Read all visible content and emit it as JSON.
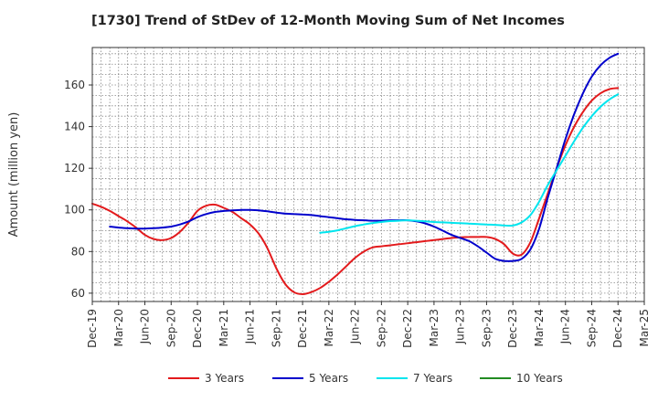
{
  "chart_data": {
    "type": "line",
    "title": "[1730]  Trend of StDev of 12-Month Moving Sum of Net Incomes",
    "ylabel": "Amount (million yen)",
    "xlabel": "",
    "ylim": [
      56,
      178
    ],
    "yticks": [
      60,
      80,
      100,
      120,
      140,
      160
    ],
    "xlim": [
      "Dec-19",
      "Mar-25"
    ],
    "x_tick_labels": [
      "Dec-19",
      "Mar-20",
      "Jun-20",
      "Sep-20",
      "Dec-20",
      "Mar-21",
      "Jun-21",
      "Sep-21",
      "Dec-21",
      "Mar-22",
      "Jun-22",
      "Sep-22",
      "Dec-22",
      "Mar-23",
      "Jun-23",
      "Sep-23",
      "Dec-23",
      "Mar-24",
      "Jun-24",
      "Sep-24",
      "Dec-24",
      "Mar-25"
    ],
    "grid": true,
    "legend_position": "bottom",
    "series": [
      {
        "name": "3 Years",
        "color": "#e31a1c",
        "points": [
          [
            "Dec-19",
            103.0
          ],
          [
            "Jan-20",
            101.5
          ],
          [
            "Feb-20",
            99.5
          ],
          [
            "Mar-20",
            97.0
          ],
          [
            "Apr-20",
            94.5
          ],
          [
            "May-20",
            91.5
          ],
          [
            "Jun-20",
            88.0
          ],
          [
            "Jul-20",
            86.0
          ],
          [
            "Aug-20",
            85.5
          ],
          [
            "Sep-20",
            86.5
          ],
          [
            "Oct-20",
            89.5
          ],
          [
            "Nov-20",
            94.0
          ],
          [
            "Dec-20",
            99.5
          ],
          [
            "Jan-21",
            102.0
          ],
          [
            "Feb-21",
            102.5
          ],
          [
            "Mar-21",
            101.0
          ],
          [
            "Apr-21",
            99.0
          ],
          [
            "May-21",
            96.0
          ],
          [
            "Jun-21",
            93.0
          ],
          [
            "Jul-21",
            88.5
          ],
          [
            "Aug-21",
            81.5
          ],
          [
            "Sep-21",
            72.0
          ],
          [
            "Oct-21",
            64.5
          ],
          [
            "Nov-21",
            60.5
          ],
          [
            "Dec-21",
            59.5
          ],
          [
            "Jan-22",
            60.5
          ],
          [
            "Feb-22",
            62.5
          ],
          [
            "Mar-22",
            65.5
          ],
          [
            "Apr-22",
            69.0
          ],
          [
            "May-22",
            73.0
          ],
          [
            "Jun-22",
            77.0
          ],
          [
            "Jul-22",
            80.0
          ],
          [
            "Aug-22",
            82.0
          ],
          [
            "Sep-22",
            82.5
          ],
          [
            "Oct-22",
            83.0
          ],
          [
            "Nov-22",
            83.5
          ],
          [
            "Dec-22",
            84.0
          ],
          [
            "Jan-23",
            84.5
          ],
          [
            "Feb-23",
            85.0
          ],
          [
            "Mar-23",
            85.5
          ],
          [
            "Apr-23",
            86.0
          ],
          [
            "May-23",
            86.5
          ],
          [
            "Jun-23",
            86.8
          ],
          [
            "Jul-23",
            87.0
          ],
          [
            "Aug-23",
            87.0
          ],
          [
            "Sep-23",
            87.0
          ],
          [
            "Oct-23",
            86.0
          ],
          [
            "Nov-23",
            83.5
          ],
          [
            "Dec-23",
            79.0
          ],
          [
            "Jan-24",
            78.5
          ],
          [
            "Feb-24",
            84.5
          ],
          [
            "Mar-24",
            96.0
          ],
          [
            "Apr-24",
            108.0
          ],
          [
            "May-24",
            120.0
          ],
          [
            "Jun-24",
            131.0
          ],
          [
            "Jul-24",
            140.0
          ],
          [
            "Aug-24",
            147.0
          ],
          [
            "Sep-24",
            152.5
          ],
          [
            "Oct-24",
            156.0
          ],
          [
            "Nov-24",
            158.0
          ],
          [
            "Dec-24",
            158.5
          ]
        ]
      },
      {
        "name": "5 Years",
        "color": "#0000cc",
        "points": [
          [
            "Feb-20",
            92.0
          ],
          [
            "Mar-20",
            91.5
          ],
          [
            "Apr-20",
            91.2
          ],
          [
            "May-20",
            91.0
          ],
          [
            "Jun-20",
            91.0
          ],
          [
            "Jul-20",
            91.2
          ],
          [
            "Aug-20",
            91.5
          ],
          [
            "Sep-20",
            92.0
          ],
          [
            "Oct-20",
            93.0
          ],
          [
            "Nov-20",
            94.5
          ],
          [
            "Dec-20",
            96.5
          ],
          [
            "Jan-21",
            98.0
          ],
          [
            "Feb-21",
            99.0
          ],
          [
            "Mar-21",
            99.5
          ],
          [
            "Apr-21",
            99.8
          ],
          [
            "May-21",
            100.0
          ],
          [
            "Jun-21",
            100.0
          ],
          [
            "Jul-21",
            99.8
          ],
          [
            "Aug-21",
            99.3
          ],
          [
            "Sep-21",
            98.7
          ],
          [
            "Oct-21",
            98.2
          ],
          [
            "Nov-21",
            98.0
          ],
          [
            "Dec-21",
            97.8
          ],
          [
            "Jan-22",
            97.5
          ],
          [
            "Feb-22",
            97.0
          ],
          [
            "Mar-22",
            96.5
          ],
          [
            "Apr-22",
            96.0
          ],
          [
            "May-22",
            95.5
          ],
          [
            "Jun-22",
            95.2
          ],
          [
            "Jul-22",
            95.0
          ],
          [
            "Aug-22",
            94.8
          ],
          [
            "Sep-22",
            94.8
          ],
          [
            "Oct-22",
            95.0
          ],
          [
            "Nov-22",
            95.0
          ],
          [
            "Dec-22",
            95.0
          ],
          [
            "Jan-23",
            94.5
          ],
          [
            "Feb-23",
            93.5
          ],
          [
            "Mar-23",
            92.0
          ],
          [
            "Apr-23",
            90.0
          ],
          [
            "May-23",
            88.0
          ],
          [
            "Jun-23",
            86.5
          ],
          [
            "Jul-23",
            85.0
          ],
          [
            "Aug-23",
            82.5
          ],
          [
            "Sep-23",
            79.5
          ],
          [
            "Oct-23",
            76.5
          ],
          [
            "Nov-23",
            75.5
          ],
          [
            "Dec-23",
            75.5
          ],
          [
            "Jan-24",
            76.5
          ],
          [
            "Feb-24",
            81.0
          ],
          [
            "Mar-24",
            91.0
          ],
          [
            "Apr-24",
            106.0
          ],
          [
            "May-24",
            120.0
          ],
          [
            "Jun-24",
            134.0
          ],
          [
            "Jul-24",
            146.0
          ],
          [
            "Aug-24",
            156.0
          ],
          [
            "Sep-24",
            164.0
          ],
          [
            "Oct-24",
            169.5
          ],
          [
            "Nov-24",
            173.0
          ],
          [
            "Dec-24",
            175.0
          ]
        ]
      },
      {
        "name": "7 Years",
        "color": "#00e5ee",
        "points": [
          [
            "Feb-22",
            89.0
          ],
          [
            "Mar-22",
            89.5
          ],
          [
            "Apr-22",
            90.2
          ],
          [
            "May-22",
            91.2
          ],
          [
            "Jun-22",
            92.2
          ],
          [
            "Jul-22",
            93.0
          ],
          [
            "Aug-22",
            93.7
          ],
          [
            "Sep-22",
            94.2
          ],
          [
            "Oct-22",
            94.6
          ],
          [
            "Nov-22",
            94.8
          ],
          [
            "Dec-22",
            95.0
          ],
          [
            "Jan-23",
            94.8
          ],
          [
            "Feb-23",
            94.5
          ],
          [
            "Mar-23",
            94.2
          ],
          [
            "Apr-23",
            94.0
          ],
          [
            "May-23",
            93.8
          ],
          [
            "Jun-23",
            93.6
          ],
          [
            "Jul-23",
            93.4
          ],
          [
            "Aug-23",
            93.2
          ],
          [
            "Sep-23",
            93.0
          ],
          [
            "Oct-23",
            92.8
          ],
          [
            "Nov-23",
            92.5
          ],
          [
            "Dec-23",
            92.5
          ],
          [
            "Jan-24",
            94.0
          ],
          [
            "Feb-24",
            97.5
          ],
          [
            "Mar-24",
            104.0
          ],
          [
            "Apr-24",
            112.0
          ],
          [
            "May-24",
            119.0
          ],
          [
            "Jun-24",
            126.0
          ],
          [
            "Jul-24",
            133.0
          ],
          [
            "Aug-24",
            139.5
          ],
          [
            "Sep-24",
            145.0
          ],
          [
            "Oct-24",
            149.5
          ],
          [
            "Nov-24",
            153.0
          ],
          [
            "Dec-24",
            155.5
          ]
        ]
      },
      {
        "name": "10 Years",
        "color": "#228b22",
        "points": []
      }
    ]
  }
}
